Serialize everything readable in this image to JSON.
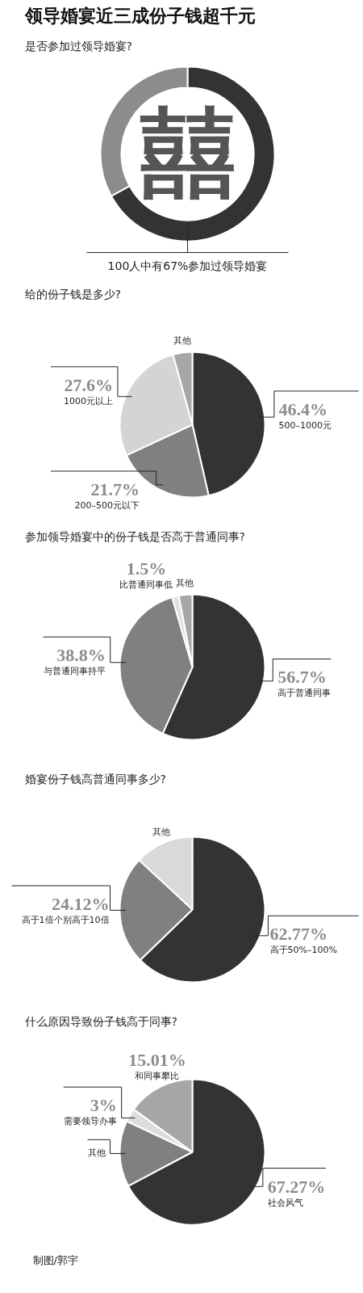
{
  "chart_data": [
    {
      "type": "donut",
      "title": "领导婚宴近三成份子钱超千元",
      "subtitle": "是否参加过领导婚宴?",
      "categories": [
        null,
        null
      ],
      "values": [
        67,
        33
      ],
      "colors": [
        "#333333",
        "#8c8c8c"
      ],
      "annotations": [
        "囍",
        "100人中有67%参加过领导婚宴"
      ]
    },
    {
      "type": "pie",
      "title": "给的份子钱是多少?",
      "categories": [
        "500–1000元",
        "200–500元以下",
        "1000元以上",
        "其他"
      ],
      "values": [
        46.4,
        21.7,
        27.6,
        4.3
      ],
      "colors": [
        "#333333",
        "#808080",
        "#d4d4d4",
        "#a6a6a6"
      ],
      "value_labels": [
        "46.4%",
        "21.7%",
        "27.6%",
        null
      ]
    },
    {
      "type": "pie",
      "title": "参加领导婚宴中的份子钱是否高于普通同事?",
      "categories": [
        "高于普通同事",
        "与普通同事持平",
        "比普通同事低",
        "其他"
      ],
      "values": [
        56.7,
        38.8,
        1.5,
        3.0
      ],
      "colors": [
        "#333333",
        "#808080",
        "#e0e0e0",
        "#a6a6a6"
      ],
      "value_labels": [
        "56.7%",
        "38.8%",
        "1.5%",
        null
      ]
    },
    {
      "type": "pie",
      "title": "婚宴份子钱高普通同事多少?",
      "categories": [
        "高于50%–100%",
        "高于1倍个别高于10倍",
        "其他"
      ],
      "values": [
        62.77,
        24.12,
        13.11
      ],
      "colors": [
        "#333333",
        "#808080",
        "#d9d9d9"
      ],
      "value_labels": [
        "62.77%",
        "24.12%",
        null
      ]
    },
    {
      "type": "pie",
      "title": "什么原因导致份子钱高于同事?",
      "categories": [
        "社会风气",
        "其他",
        "需要领导办事",
        "和同事攀比"
      ],
      "values": [
        67.27,
        14.72,
        3,
        15.01
      ],
      "colors": [
        "#333333",
        "#808080",
        "#dcdcdc",
        "#a6a6a6"
      ],
      "value_labels": [
        "67.27%",
        null,
        "3%",
        "15.01%"
      ],
      "annotations": [
        "制图/郭宇"
      ]
    }
  ]
}
